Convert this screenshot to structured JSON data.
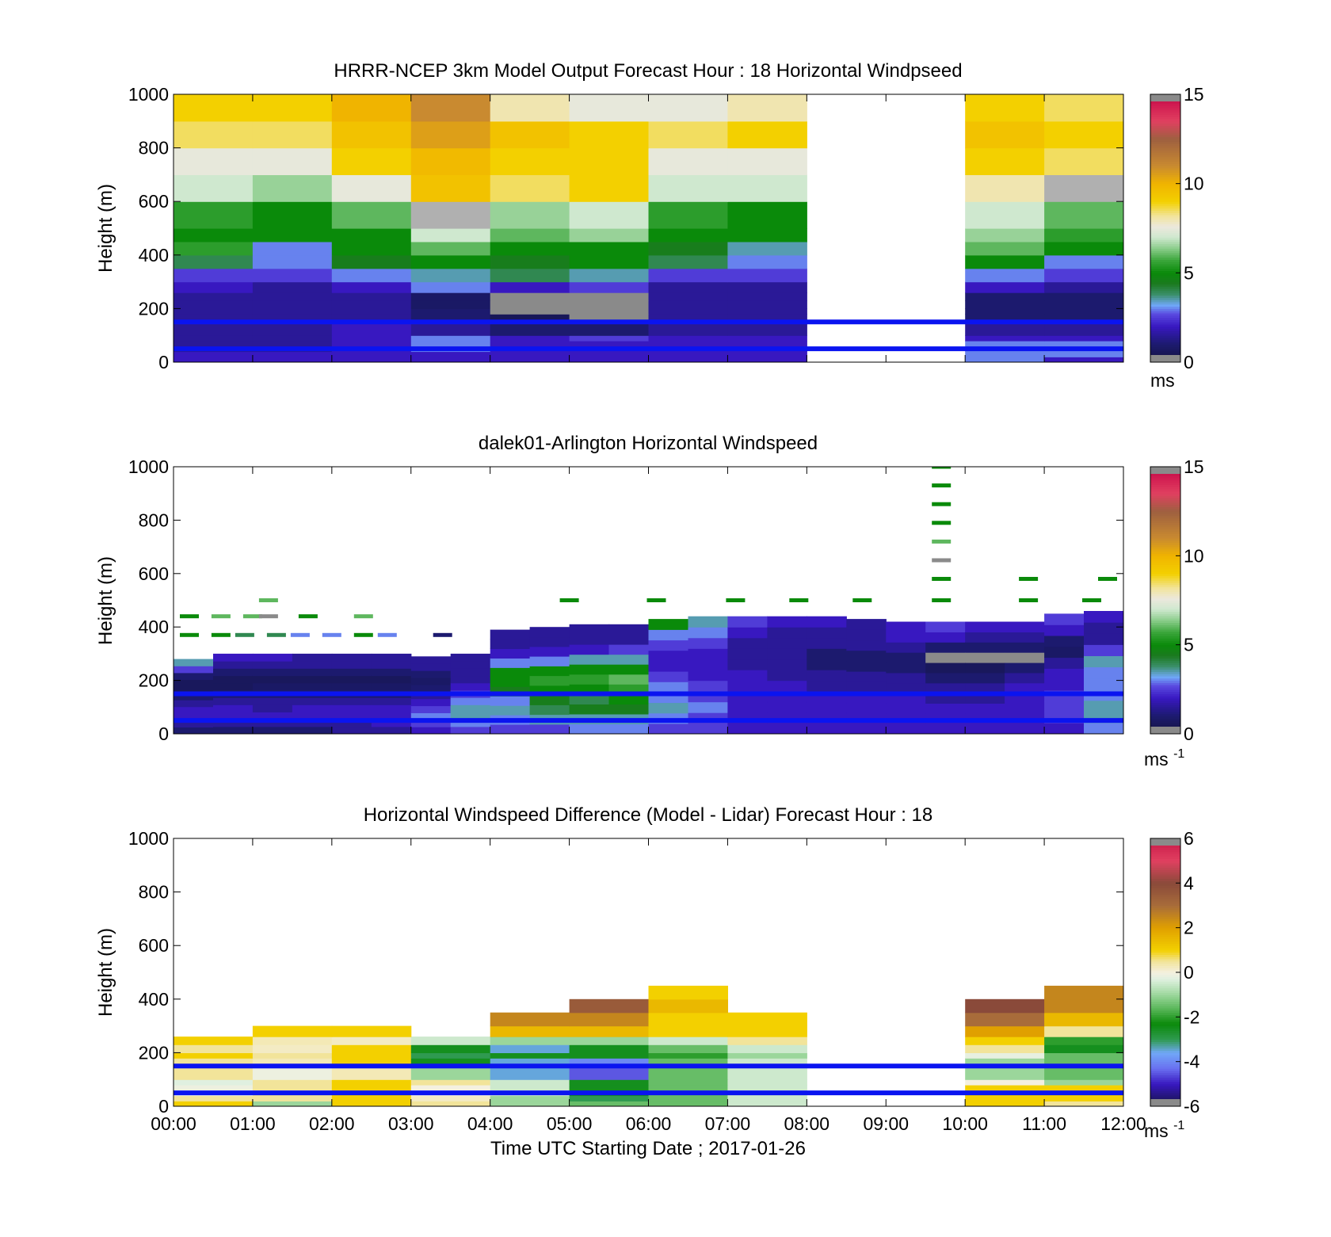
{
  "figure": {
    "xlabel": "Time UTC  Starting Date ; 2017-01-26",
    "x_ticks": [
      "00:00",
      "01:00",
      "02:00",
      "03:00",
      "04:00",
      "05:00",
      "06:00",
      "07:00",
      "08:00",
      "09:00",
      "10:00",
      "11:00",
      "12:00"
    ]
  },
  "chart_data": [
    {
      "type": "heatmap",
      "title": "HRRR-NCEP 3km Model Output   Forecast Hour : 18 Horizontal Windpseed",
      "ylabel": "Height (m)",
      "xlim": [
        0,
        12
      ],
      "ylim": [
        0,
        1000
      ],
      "y_ticks": [
        0,
        200,
        400,
        600,
        800,
        1000
      ],
      "colorbar": {
        "min": 0,
        "max": 15,
        "ticks": [
          0,
          5,
          10,
          15
        ],
        "unit": "ms",
        "unit_sup": ""
      },
      "reference_lines": [
        150,
        50
      ],
      "reference_line_color": "#0a14f0",
      "x_columns": [
        0,
        1,
        2,
        3,
        4,
        5,
        6,
        7,
        8,
        9,
        10,
        11
      ],
      "missing_columns": [
        8,
        9
      ],
      "row_edges": [
        0,
        20,
        40,
        80,
        100,
        150,
        180,
        200,
        230,
        260,
        300,
        350,
        400,
        450,
        500,
        600,
        700,
        800,
        900,
        1000
      ],
      "cells": [
        [
          2,
          2,
          2,
          2,
          2,
          2,
          2,
          2,
          null,
          null,
          3,
          2
        ],
        [
          2,
          2,
          2,
          2,
          2,
          2,
          2,
          2,
          null,
          null,
          3,
          3
        ],
        [
          1.5,
          1.5,
          2,
          3,
          2,
          2,
          2,
          2,
          null,
          null,
          3,
          3
        ],
        [
          1.5,
          1.5,
          2,
          3,
          2,
          2.5,
          2,
          2,
          null,
          null,
          2,
          2
        ],
        [
          1.5,
          1.5,
          2,
          1.5,
          1,
          1,
          1.5,
          1.5,
          null,
          null,
          1.5,
          1.5
        ],
        [
          1.5,
          1.5,
          1.5,
          1,
          0.5,
          0.3,
          1.5,
          1.5,
          null,
          null,
          1,
          1
        ],
        [
          1.5,
          1.5,
          1.5,
          1,
          0.3,
          0.3,
          1.5,
          1.5,
          null,
          null,
          1,
          1
        ],
        [
          1.5,
          1.5,
          1.5,
          0.8,
          0.3,
          0.3,
          1.5,
          1.5,
          null,
          null,
          1,
          1
        ],
        [
          1.5,
          1.5,
          1.5,
          0.8,
          0.3,
          0.3,
          1.5,
          1.5,
          null,
          null,
          1,
          1
        ],
        [
          2,
          1.5,
          2,
          3,
          2,
          2.5,
          1.5,
          1.5,
          null,
          null,
          2,
          1.5
        ],
        [
          2.5,
          2.5,
          3,
          3.5,
          4,
          3.5,
          2.5,
          2.5,
          null,
          null,
          3,
          2.5
        ],
        [
          4,
          3,
          4.5,
          5,
          4.5,
          5,
          4,
          3,
          null,
          null,
          5,
          3
        ],
        [
          5.5,
          3,
          5,
          6,
          5,
          5,
          4.5,
          3.5,
          null,
          null,
          6,
          5
        ],
        [
          5,
          5,
          5,
          7,
          6,
          6.5,
          5,
          5,
          null,
          null,
          6.5,
          5.5
        ],
        [
          5.5,
          5,
          6,
          15.5,
          6.5,
          7,
          5.5,
          5,
          null,
          null,
          7,
          6
        ],
        [
          7,
          6.5,
          7.5,
          9.5,
          8.5,
          9,
          7,
          7,
          null,
          null,
          8,
          15.5
        ],
        [
          7.5,
          7.5,
          9,
          9.8,
          9,
          9,
          7.5,
          7.5,
          null,
          null,
          9,
          8.5
        ],
        [
          8.5,
          8.5,
          9.5,
          10.5,
          9.5,
          9,
          8.5,
          9,
          null,
          null,
          9.5,
          9
        ],
        [
          9,
          9,
          10,
          11,
          8,
          7.5,
          7.5,
          8,
          null,
          null,
          9,
          8.5
        ]
      ]
    },
    {
      "type": "heatmap",
      "title": "dalek01-Arlington  Horizontal Windspeed",
      "ylabel": "Height (m)",
      "xlim": [
        0,
        12
      ],
      "ylim": [
        0,
        1000
      ],
      "y_ticks": [
        0,
        200,
        400,
        600,
        800,
        1000
      ],
      "colorbar": {
        "min": 0,
        "max": 15,
        "ticks": [
          0,
          5,
          10,
          15
        ],
        "unit": "ms",
        "unit_sup": "-1"
      },
      "reference_lines": [
        150,
        50
      ],
      "reference_line_color": "#0a14f0",
      "x_columns": [
        0,
        0.5,
        1,
        1.5,
        2,
        2.5,
        3,
        3.5,
        4,
        4.5,
        5,
        5.5,
        6,
        6.5,
        7,
        7.5,
        8,
        8.5,
        9,
        9.5,
        10,
        10.5,
        11,
        11.5
      ],
      "column_width": 0.5,
      "column_top": [
        280,
        300,
        300,
        300,
        300,
        300,
        290,
        300,
        390,
        400,
        410,
        410,
        430,
        440,
        440,
        440,
        440,
        430,
        420,
        420,
        420,
        420,
        450,
        460
      ],
      "profiles": [
        [
          1.0,
          1.5,
          2.0,
          2.0,
          1.5,
          1.0,
          0.6,
          0.6,
          1.0,
          2.5,
          3.5
        ],
        [
          1.0,
          1.5,
          2.0,
          2.0,
          1.5,
          1.0,
          0.6,
          0.6,
          1.0,
          1.5,
          2.0
        ],
        [
          1.0,
          1.5,
          2.0,
          1.5,
          1.5,
          1.0,
          0.8,
          0.6,
          1.0,
          1.5,
          2.0
        ],
        [
          1.0,
          1.5,
          2.0,
          2.0,
          1.5,
          1.0,
          0.8,
          0.6,
          1.0,
          1.5,
          1.5
        ],
        [
          1.5,
          1.5,
          2.0,
          2.0,
          1.5,
          1.0,
          0.8,
          0.6,
          1.0,
          1.5,
          1.5
        ],
        [
          1.5,
          2.0,
          2.0,
          2.0,
          1.5,
          1.0,
          0.8,
          0.6,
          1.0,
          1.5,
          1.5
        ],
        [
          2.0,
          2.5,
          3.0,
          2.5,
          2.0,
          1.5,
          1.0,
          0.8,
          1.0,
          1.5,
          1.5
        ],
        [
          2.5,
          3.0,
          3.5,
          3.5,
          3.0,
          2.5,
          2.0,
          1.5,
          1.5,
          1.5,
          1.5
        ],
        [
          2.5,
          3.0,
          3.5,
          3.0,
          4.5,
          5.0,
          5.0,
          3.0,
          2.0,
          1.5,
          1.5
        ],
        [
          2.5,
          3.5,
          4.0,
          4.5,
          5.0,
          5.5,
          5.0,
          3.0,
          2.0,
          1.5,
          1.5
        ],
        [
          3.0,
          3.5,
          4.5,
          4.0,
          5.0,
          5.5,
          5.0,
          3.5,
          2.0,
          1.5,
          1.5
        ],
        [
          3.0,
          3.5,
          4.5,
          5.0,
          5.5,
          6.0,
          5.0,
          3.5,
          2.5,
          1.5,
          1.5
        ],
        [
          2.5,
          3.0,
          3.5,
          3.0,
          3.0,
          2.5,
          2.0,
          2.0,
          2.5,
          3.0,
          5.0
        ],
        [
          2.5,
          2.5,
          3.0,
          2.5,
          2.5,
          2.0,
          2.0,
          2.0,
          2.5,
          3.0,
          3.5
        ],
        [
          2.0,
          2.0,
          2.0,
          2.0,
          2.0,
          2.0,
          1.5,
          1.5,
          1.5,
          2.0,
          2.5
        ],
        [
          2.0,
          2.0,
          2.0,
          2.0,
          2.0,
          1.5,
          1.5,
          1.5,
          1.5,
          1.5,
          2.0
        ],
        [
          2.0,
          2.0,
          2.0,
          2.0,
          1.5,
          1.5,
          1.0,
          1.0,
          1.5,
          1.5,
          2.0
        ],
        [
          2.0,
          2.0,
          2.0,
          2.0,
          1.5,
          1.5,
          1.0,
          1.0,
          1.5,
          1.5,
          1.5
        ],
        [
          2.0,
          2.0,
          2.0,
          2.0,
          1.5,
          1.5,
          1.0,
          1.0,
          1.5,
          2.0,
          2.0
        ],
        [
          2.0,
          2.0,
          2.0,
          1.5,
          1.5,
          1.0,
          0.6,
          0.3,
          1.0,
          2.0,
          2.5
        ],
        [
          2.0,
          2.0,
          2.0,
          1.5,
          1.5,
          1.0,
          0.6,
          0.3,
          1.0,
          1.5,
          2.0
        ],
        [
          2.0,
          2.0,
          2.0,
          2.0,
          2.0,
          1.5,
          1.0,
          0.3,
          1.0,
          1.5,
          2.0
        ],
        [
          2.0,
          2.5,
          2.5,
          2.5,
          2.0,
          2.0,
          1.5,
          0.8,
          1.0,
          2.0,
          2.5
        ],
        [
          3.0,
          3.5,
          3.5,
          3.0,
          3.0,
          3.0,
          3.5,
          2.5,
          1.5,
          1.5,
          2.0
        ]
      ],
      "sparse_points": [
        {
          "x": 9.7,
          "y": 1000,
          "v": 5.0
        },
        {
          "x": 9.7,
          "y": 930,
          "v": 5.0
        },
        {
          "x": 9.7,
          "y": 860,
          "v": 5.0
        },
        {
          "x": 9.7,
          "y": 790,
          "v": 5.0
        },
        {
          "x": 9.7,
          "y": 720,
          "v": 6.0
        },
        {
          "x": 9.7,
          "y": 650,
          "v": 0.2
        },
        {
          "x": 9.7,
          "y": 580,
          "v": 5.0
        },
        {
          "x": 10.8,
          "y": 580,
          "v": 5.0
        },
        {
          "x": 11.8,
          "y": 580,
          "v": 5.0
        },
        {
          "x": 5.0,
          "y": 500,
          "v": 5.0
        },
        {
          "x": 6.1,
          "y": 500,
          "v": 5.0
        },
        {
          "x": 7.1,
          "y": 500,
          "v": 5.0
        },
        {
          "x": 7.9,
          "y": 500,
          "v": 5.0
        },
        {
          "x": 8.7,
          "y": 500,
          "v": 5.0
        },
        {
          "x": 9.7,
          "y": 500,
          "v": 5.0
        },
        {
          "x": 10.8,
          "y": 500,
          "v": 5.0
        },
        {
          "x": 11.6,
          "y": 500,
          "v": 5.0
        },
        {
          "x": 1.2,
          "y": 500,
          "v": 6.0
        },
        {
          "x": 0.2,
          "y": 440,
          "v": 5.0
        },
        {
          "x": 0.6,
          "y": 440,
          "v": 6.0
        },
        {
          "x": 1.0,
          "y": 440,
          "v": 6.0
        },
        {
          "x": 1.2,
          "y": 440,
          "v": 0.2
        },
        {
          "x": 1.7,
          "y": 440,
          "v": 5.0
        },
        {
          "x": 2.4,
          "y": 440,
          "v": 6.0
        },
        {
          "x": 0.2,
          "y": 370,
          "v": 5.0
        },
        {
          "x": 0.6,
          "y": 370,
          "v": 5.0
        },
        {
          "x": 0.9,
          "y": 370,
          "v": 4.0
        },
        {
          "x": 1.3,
          "y": 370,
          "v": 4.0
        },
        {
          "x": 1.6,
          "y": 370,
          "v": 3.0
        },
        {
          "x": 2.0,
          "y": 370,
          "v": 3.0
        },
        {
          "x": 2.4,
          "y": 370,
          "v": 5.0
        },
        {
          "x": 2.7,
          "y": 370,
          "v": 3.0
        },
        {
          "x": 3.4,
          "y": 370,
          "v": 1.0
        }
      ]
    },
    {
      "type": "heatmap",
      "title": "Horizontal Windspeed Difference (Model - Lidar) Forecast Hour : 18",
      "ylabel": "Height (m)",
      "xlim": [
        0,
        12
      ],
      "ylim": [
        0,
        1000
      ],
      "y_ticks": [
        0,
        200,
        400,
        600,
        800,
        1000
      ],
      "colorbar": {
        "min": -6,
        "max": 6,
        "ticks": [
          -6,
          -4,
          -2,
          0,
          2,
          4,
          6
        ],
        "unit": "ms",
        "unit_sup": "-1"
      },
      "reference_lines": [
        150,
        50
      ],
      "reference_line_color": "#0a14f0",
      "x_columns": [
        0,
        1,
        2,
        3,
        4,
        5,
        6,
        7,
        8,
        9,
        10,
        11
      ],
      "missing_columns": [
        8,
        9
      ],
      "row_edges": [
        0,
        20,
        40,
        80,
        100,
        150,
        180,
        200,
        230,
        260,
        300,
        350,
        400,
        450
      ],
      "cells": [
        [
          1.0,
          -1.0,
          1.0,
          0.5,
          -1.0,
          -1.5,
          -1.5,
          -0.5,
          null,
          null,
          1.0,
          0.5
        ],
        [
          0.5,
          0.5,
          1.0,
          0.2,
          -1.0,
          -3.0,
          -1.5,
          -0.5,
          null,
          null,
          1.0,
          1.0
        ],
        [
          -0.1,
          0.5,
          1.0,
          0.0,
          -0.5,
          -2.5,
          -1.5,
          -0.5,
          null,
          null,
          1.0,
          1.0
        ],
        [
          -0.3,
          0.5,
          1.0,
          0.5,
          -0.5,
          -2.5,
          -1.5,
          -0.5,
          null,
          null,
          0.0,
          -1.0
        ],
        [
          0.5,
          -0.1,
          0.3,
          -1.0,
          -3.5,
          -4.5,
          -1.5,
          -0.5,
          null,
          null,
          -1.0,
          -1.5
        ],
        [
          0.5,
          0.3,
          1.0,
          -2.5,
          -3.5,
          -4.0,
          -1.5,
          -0.5,
          null,
          null,
          -1.0,
          -1.5
        ],
        [
          1.0,
          0.5,
          1.0,
          -3.0,
          -2.5,
          -2.5,
          -2.0,
          -1.0,
          null,
          null,
          -0.2,
          -1.5
        ],
        [
          0.5,
          0.2,
          1.0,
          -2.5,
          -3.5,
          -2.5,
          -1.5,
          -0.5,
          null,
          null,
          0.5,
          -2.5
        ],
        [
          1.0,
          0.3,
          0.2,
          -0.5,
          -1.0,
          -1.0,
          -0.5,
          0.5,
          null,
          null,
          1.0,
          -2.0
        ],
        [
          null,
          1.0,
          1.0,
          null,
          1.5,
          1.5,
          1.0,
          1.0,
          null,
          null,
          2.0,
          0.5
        ],
        [
          null,
          null,
          null,
          null,
          2.5,
          2.5,
          1.0,
          1.0,
          null,
          null,
          3.0,
          1.5
        ],
        [
          null,
          null,
          null,
          null,
          null,
          3.5,
          1.5,
          null,
          null,
          null,
          4.0,
          2.5
        ],
        [
          null,
          null,
          null,
          null,
          null,
          null,
          1.0,
          null,
          null,
          null,
          null,
          2.5
        ]
      ]
    }
  ]
}
